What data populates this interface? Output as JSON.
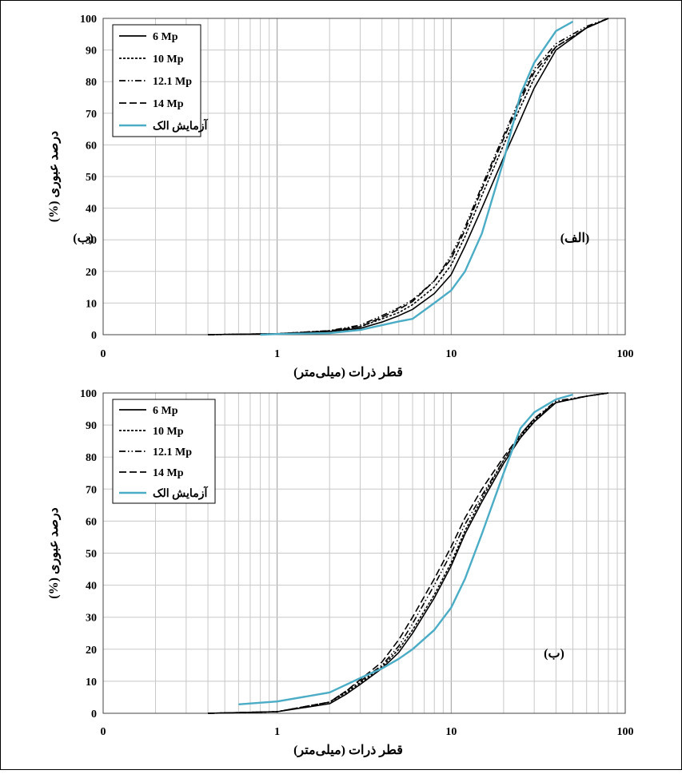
{
  "chart_data": [
    {
      "type": "line",
      "panel_label": "(الف)",
      "overlay_label": "(ب)",
      "xlabel": "قطر ذرات (میلی‌متر)",
      "ylabel": "درصد عبوری (%)",
      "x_scale": "log",
      "xlim": [
        0.1,
        100
      ],
      "ylim": [
        0,
        100
      ],
      "x_tick_labels": [
        "0",
        "1",
        "10",
        "100"
      ],
      "y_ticks": [
        0,
        10,
        20,
        30,
        40,
        50,
        60,
        70,
        80,
        90,
        100
      ],
      "grid": true,
      "legend_position": "top-left",
      "series": [
        {
          "name": "6 Mp",
          "color": "#000000",
          "dash": "solid",
          "x": [
            0.4,
            1,
            2,
            3,
            4,
            5,
            6,
            8,
            10,
            12,
            15,
            20,
            25,
            30,
            40,
            60,
            80
          ],
          "y": [
            0,
            0.3,
            1.0,
            2.0,
            4.0,
            6.0,
            8.0,
            13.0,
            19.0,
            28.0,
            40.0,
            56.0,
            68.0,
            78.0,
            90.0,
            97.0,
            100.0
          ]
        },
        {
          "name": "10 Mp",
          "color": "#000000",
          "dash": "short",
          "x": [
            0.4,
            1,
            2,
            3,
            4,
            5,
            6,
            8,
            10,
            12,
            15,
            20,
            25,
            30,
            40,
            60,
            80
          ],
          "y": [
            0,
            0.3,
            1.2,
            2.5,
            5.0,
            7.0,
            9.5,
            15.0,
            22.0,
            31.0,
            44.0,
            60.0,
            72.0,
            81.0,
            91.0,
            97.0,
            100.0
          ]
        },
        {
          "name": "12.1 Mp",
          "color": "#000000",
          "dash": "dashdotdot",
          "x": [
            0.4,
            1,
            2,
            3,
            4,
            5,
            6,
            8,
            10,
            12,
            15,
            20,
            25,
            30,
            40,
            60,
            80
          ],
          "y": [
            0,
            0.3,
            1.3,
            3.0,
            6.0,
            8.5,
            11.0,
            17.0,
            25.0,
            34.0,
            47.0,
            63.0,
            75.0,
            84.0,
            92.0,
            97.5,
            100.0
          ]
        },
        {
          "name": "14 Mp",
          "color": "#000000",
          "dash": "long",
          "x": [
            0.4,
            1,
            2,
            3,
            4,
            5,
            6,
            8,
            10,
            12,
            15,
            20,
            25,
            30,
            40,
            60,
            80
          ],
          "y": [
            0,
            0.3,
            1.2,
            2.5,
            5.5,
            8.0,
            10.5,
            17.0,
            24.0,
            33.0,
            46.0,
            62.0,
            74.0,
            83.0,
            91.0,
            97.0,
            100.0
          ]
        },
        {
          "name": "آزمایش الک",
          "color": "#4bacc6",
          "dash": "solid",
          "x": [
            0.8,
            1,
            2,
            3,
            4,
            5,
            6,
            8,
            10,
            12,
            15,
            20,
            25,
            30,
            40,
            50
          ],
          "y": [
            0,
            0.2,
            0.5,
            1.5,
            3.0,
            4.2,
            5.0,
            10.0,
            14.0,
            20.0,
            32.0,
            55.0,
            76.0,
            86.0,
            96.0,
            99.0
          ]
        }
      ]
    },
    {
      "type": "line",
      "panel_label": "(ب)",
      "xlabel": "قطر ذرات (میلی‌متر)",
      "ylabel": "درصد عبوری (%)",
      "x_scale": "log",
      "xlim": [
        0.1,
        100
      ],
      "ylim": [
        0,
        100
      ],
      "x_tick_labels": [
        "0",
        "1",
        "10",
        "100"
      ],
      "y_ticks": [
        0,
        10,
        20,
        30,
        40,
        50,
        60,
        70,
        80,
        90,
        100
      ],
      "grid": true,
      "legend_position": "top-left",
      "series": [
        {
          "name": "6 Mp",
          "color": "#000000",
          "dash": "solid",
          "x": [
            0.4,
            1,
            2,
            2.5,
            3,
            4,
            5,
            6,
            8,
            10,
            12,
            15,
            20,
            25,
            30,
            40,
            60,
            80
          ],
          "y": [
            0,
            0.5,
            3.0,
            6.0,
            9.0,
            14.0,
            19.0,
            25.0,
            36.0,
            46.0,
            56.0,
            66.0,
            78.0,
            86.0,
            91.0,
            97.0,
            99.0,
            100.0
          ]
        },
        {
          "name": "10 Mp",
          "color": "#000000",
          "dash": "short",
          "x": [
            0.4,
            1,
            2,
            2.5,
            3,
            4,
            5,
            6,
            8,
            10,
            12,
            15,
            20,
            25,
            30,
            40,
            60,
            80
          ],
          "y": [
            0,
            0.5,
            3.5,
            6.5,
            9.5,
            14.5,
            20.0,
            26.0,
            37.0,
            47.0,
            57.0,
            67.0,
            79.0,
            86.5,
            91.5,
            97.0,
            99.0,
            100.0
          ]
        },
        {
          "name": "12.1 Mp",
          "color": "#000000",
          "dash": "dashdotdot",
          "x": [
            0.4,
            1,
            2,
            2.5,
            3,
            4,
            5,
            6,
            8,
            10,
            12,
            15,
            20,
            25,
            30,
            40,
            60,
            80
          ],
          "y": [
            0,
            0.5,
            3.5,
            7.0,
            10.0,
            15.0,
            21.0,
            28.0,
            40.0,
            50.0,
            59.0,
            68.0,
            79.0,
            87.0,
            92.0,
            97.5,
            99.0,
            100.0
          ]
        },
        {
          "name": "14 Mp",
          "color": "#000000",
          "dash": "long",
          "x": [
            0.4,
            1,
            2,
            2.5,
            3,
            4,
            5,
            6,
            8,
            10,
            12,
            15,
            20,
            25,
            30,
            40,
            60,
            80
          ],
          "y": [
            0,
            0.5,
            3.5,
            7.0,
            10.5,
            16.0,
            23.0,
            30.0,
            42.0,
            52.0,
            61.0,
            70.0,
            80.0,
            87.0,
            92.0,
            97.0,
            99.0,
            100.0
          ]
        },
        {
          "name": "آزمایش الک",
          "color": "#4bacc6",
          "dash": "solid",
          "x": [
            0.6,
            1,
            2,
            3,
            4,
            5,
            6,
            8,
            10,
            12,
            15,
            20,
            25,
            30,
            40,
            50
          ],
          "y": [
            2.8,
            3.7,
            6.5,
            11.0,
            14.0,
            17.0,
            20.0,
            26.0,
            33.0,
            42.0,
            56.0,
            75.0,
            89.0,
            94.0,
            98.0,
            99.5
          ]
        }
      ]
    }
  ]
}
